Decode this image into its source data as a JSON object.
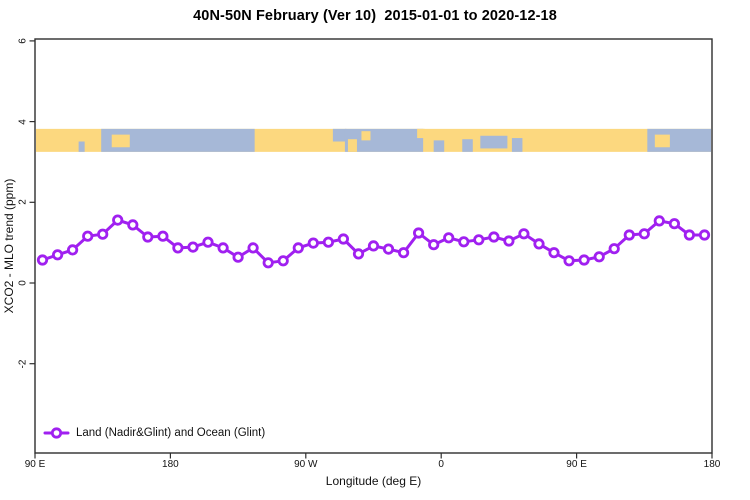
{
  "header": {
    "title": "40N-50N February (Ver 10)  2015-01-01 to 2020-12-18"
  },
  "chart_data": {
    "type": "line",
    "title": "40N-50N February (Ver 10)  2015-01-01 to 2020-12-18",
    "xlabel": "Longitude (deg E)",
    "ylabel": "XCO2 - MLO trend (ppm)",
    "xlim": [
      90,
      540
    ],
    "ylim": [
      -4.2,
      6.1
    ],
    "grid": false,
    "x_ticks": [
      {
        "lon": 90,
        "label": "90 E"
      },
      {
        "lon": 180,
        "label": "180"
      },
      {
        "lon": 270,
        "label": "90 W"
      },
      {
        "lon": 360,
        "label": "0"
      },
      {
        "lon": 450,
        "label": "90 E"
      },
      {
        "lon": 540,
        "label": "180"
      }
    ],
    "y_ticks": [
      {
        "value": 6,
        "label": "6"
      },
      {
        "value": 4,
        "label": "4"
      },
      {
        "value": 2,
        "label": "2"
      },
      {
        "value": 0,
        "label": "0"
      },
      {
        "value": -2,
        "label": "-2"
      }
    ],
    "legend": {
      "position": "bottom-left",
      "entries": [
        "Land (Nadir&Glint) and Ocean (Glint)"
      ]
    },
    "series": [
      {
        "name": "Land (Nadir&Glint) and Ocean (Glint)",
        "color": "#A020F0",
        "marker": "open-circle",
        "x": [
          95,
          105,
          115,
          125,
          135,
          145,
          155,
          165,
          175,
          185,
          195,
          205,
          215,
          225,
          235,
          245,
          255,
          265,
          275,
          285,
          295,
          305,
          315,
          325,
          335,
          345,
          355,
          365,
          375,
          385,
          395,
          405,
          415,
          425,
          435,
          445,
          455,
          465,
          475,
          485,
          495,
          505,
          515,
          525,
          535
        ],
        "values": [
          0.57,
          0.7,
          0.82,
          1.16,
          1.21,
          1.56,
          1.44,
          1.14,
          1.16,
          0.87,
          0.89,
          1.01,
          0.87,
          0.64,
          0.87,
          0.5,
          0.55,
          0.87,
          0.99,
          1.01,
          1.09,
          0.72,
          0.92,
          0.84,
          0.75,
          1.24,
          0.95,
          1.12,
          1.02,
          1.07,
          1.14,
          1.04,
          1.22,
          0.97,
          0.75,
          0.55,
          0.57,
          0.65,
          0.85,
          1.19,
          1.22,
          1.54,
          1.47,
          1.19,
          1.19
        ]
      }
    ],
    "map_band": {
      "description": "40N-50N latitude world strip: land=yellow, ocean=blue",
      "value_top": 3.82,
      "value_bottom": 3.25,
      "land_color": "#FCD87F",
      "ocean_color": "#A6B8D7",
      "base": "land",
      "ocean_patches": [
        {
          "lon0": 119,
          "lon1": 123,
          "f0": 0.55,
          "f1": 1.0
        },
        {
          "lon0": 134,
          "lon1": 236,
          "f0": 0.0,
          "f1": 1.0
        },
        {
          "lon0": 288,
          "lon1": 297,
          "f0": 0.0,
          "f1": 0.55
        },
        {
          "lon0": 296,
          "lon1": 348,
          "f0": 0.0,
          "f1": 1.0
        },
        {
          "lon0": 355,
          "lon1": 362,
          "f0": 0.5,
          "f1": 1.0
        },
        {
          "lon0": 374,
          "lon1": 381,
          "f0": 0.45,
          "f1": 1.0
        },
        {
          "lon0": 386,
          "lon1": 404,
          "f0": 0.3,
          "f1": 0.85
        },
        {
          "lon0": 407,
          "lon1": 414,
          "f0": 0.4,
          "f1": 1.0
        },
        {
          "lon0": 497,
          "lon1": 540,
          "f0": 0.0,
          "f1": 1.0
        }
      ],
      "land_patches": [
        {
          "lon0": 141,
          "lon1": 153,
          "f0": 0.25,
          "f1": 0.8
        },
        {
          "lon0": 298,
          "lon1": 304,
          "f0": 0.45,
          "f1": 1.0
        },
        {
          "lon0": 307,
          "lon1": 313,
          "f0": 0.1,
          "f1": 0.5
        },
        {
          "lon0": 344,
          "lon1": 349,
          "f0": 0.0,
          "f1": 0.4
        },
        {
          "lon0": 502,
          "lon1": 512,
          "f0": 0.25,
          "f1": 0.8
        }
      ]
    }
  },
  "colors": {
    "series_purple": "#A020F0",
    "land_yellow": "#FCD87F",
    "ocean_blue": "#A6B8D7",
    "axis": "#2e2e2e",
    "background": "#ffffff"
  }
}
